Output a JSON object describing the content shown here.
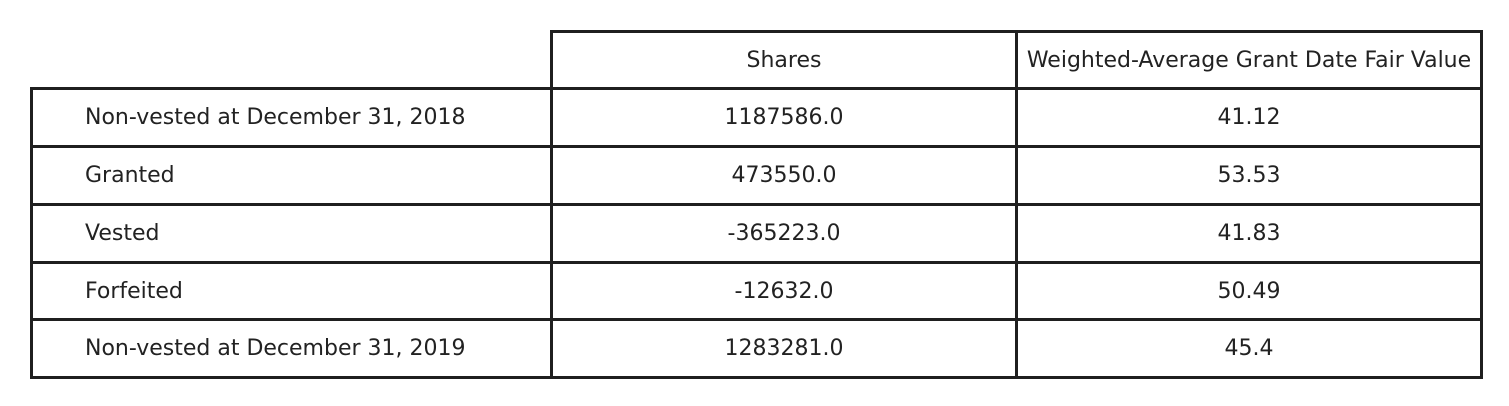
{
  "chart_data": {
    "type": "table",
    "columns": [
      "",
      "Shares",
      "Weighted-Average Grant Date Fair Value"
    ],
    "rows": [
      {
        "label": "Non-vested at December 31, 2018",
        "shares": "1187586.0",
        "fair_value": "41.12"
      },
      {
        "label": "Granted",
        "shares": "473550.0",
        "fair_value": "53.53"
      },
      {
        "label": "Vested",
        "shares": "-365223.0",
        "fair_value": "41.83"
      },
      {
        "label": "Forfeited",
        "shares": "-12632.0",
        "fair_value": "50.49"
      },
      {
        "label": "Non-vested at December 31, 2019",
        "shares": "1283281.0",
        "fair_value": "45.4"
      }
    ]
  },
  "colors": {
    "border": "#1f1f1f",
    "text": "#222222",
    "background": "#ffffff"
  }
}
